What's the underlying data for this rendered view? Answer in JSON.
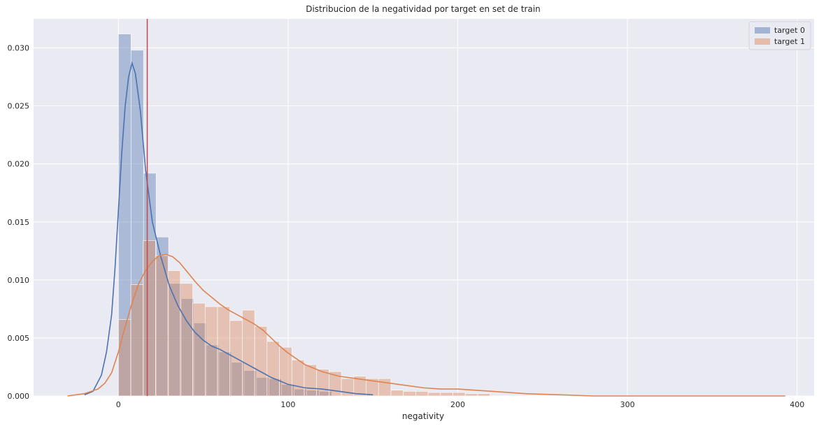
{
  "chart_data": {
    "type": "histogram",
    "title": "Distribucion de la negatividad por target en set de train",
    "xlabel": "negativity",
    "ylabel": "",
    "xlim": [
      -50,
      410
    ],
    "ylim": [
      0,
      0.0325
    ],
    "xticks": [
      0,
      100,
      200,
      300,
      400
    ],
    "yticks": [
      0.0,
      0.005,
      0.01,
      0.015,
      0.02,
      0.025,
      0.03
    ],
    "ytick_labels": [
      "0.000",
      "0.005",
      "0.010",
      "0.015",
      "0.020",
      "0.025",
      "0.030"
    ],
    "grid": true,
    "legend_position": "top-right",
    "vline": {
      "x": 17,
      "color": "#c44e52"
    },
    "series": [
      {
        "name": "target 0",
        "color": "#4c72b0",
        "bin_edges": [
          0,
          7.4,
          14.8,
          22.2,
          29.6,
          37,
          44.4,
          51.8,
          59.2,
          66.6,
          74,
          81.4,
          88.8,
          96.2,
          103.6,
          111,
          118.4,
          125.8
        ],
        "values": [
          0.0312,
          0.0298,
          0.0192,
          0.0137,
          0.0097,
          0.0084,
          0.0063,
          0.0044,
          0.0038,
          0.0029,
          0.0022,
          0.0016,
          0.0015,
          0.001,
          0.0006,
          0.0005,
          0.0004
        ],
        "kde_x": [
          -20,
          -15,
          -10,
          -7,
          -4,
          -2,
          0,
          2,
          4,
          6,
          8,
          10,
          13,
          16,
          20,
          25,
          30,
          35,
          40,
          45,
          50,
          55,
          60,
          70,
          80,
          90,
          100,
          110,
          120,
          130,
          140,
          150
        ],
        "kde_y": [
          0.0001,
          0.0004,
          0.0018,
          0.0038,
          0.007,
          0.011,
          0.016,
          0.021,
          0.025,
          0.0275,
          0.0287,
          0.0278,
          0.0245,
          0.0195,
          0.015,
          0.012,
          0.0095,
          0.0078,
          0.0065,
          0.0055,
          0.0048,
          0.0043,
          0.004,
          0.0032,
          0.0024,
          0.0016,
          0.001,
          0.0007,
          0.0006,
          0.0004,
          0.0002,
          0.0001
        ]
      },
      {
        "name": "target 1",
        "color": "#dd8452",
        "bin_edges": [
          0,
          7.3,
          14.6,
          21.9,
          29.2,
          36.5,
          43.8,
          51.1,
          58.4,
          65.7,
          73,
          80.3,
          87.6,
          94.9,
          102.2,
          109.5,
          116.8,
          124.1,
          131.4,
          138.7,
          146,
          153.3,
          160.6,
          167.9,
          175.2,
          182.5,
          189.8,
          197.1,
          204.4,
          211.7,
          219
        ],
        "values": [
          0.0066,
          0.0096,
          0.0134,
          0.0121,
          0.0108,
          0.0097,
          0.008,
          0.0077,
          0.0077,
          0.0065,
          0.0074,
          0.006,
          0.0047,
          0.0042,
          0.0031,
          0.0027,
          0.0023,
          0.0021,
          0.0015,
          0.0017,
          0.0015,
          0.0015,
          0.0005,
          0.0004,
          0.0004,
          0.0003,
          0.0003,
          0.0003,
          0.0002,
          0.0002
        ],
        "kde_x": [
          -30,
          -20,
          -12,
          -8,
          -4,
          0,
          4,
          8,
          12,
          16,
          20,
          24,
          28,
          32,
          36,
          40,
          45,
          50,
          55,
          60,
          65,
          70,
          75,
          80,
          85,
          90,
          95,
          100,
          110,
          120,
          130,
          140,
          150,
          160,
          170,
          180,
          190,
          200,
          210,
          220,
          240,
          260,
          280,
          300,
          350,
          393
        ],
        "kde_y": [
          0.0,
          0.0002,
          0.0006,
          0.0011,
          0.002,
          0.0038,
          0.006,
          0.008,
          0.0097,
          0.0108,
          0.0116,
          0.0121,
          0.0122,
          0.012,
          0.0115,
          0.0108,
          0.0099,
          0.0091,
          0.0085,
          0.0079,
          0.0074,
          0.007,
          0.0066,
          0.0062,
          0.0057,
          0.005,
          0.0043,
          0.0037,
          0.0027,
          0.0021,
          0.0017,
          0.0015,
          0.0013,
          0.0011,
          0.0009,
          0.0007,
          0.0006,
          0.0006,
          0.0005,
          0.0004,
          0.0002,
          0.0001,
          0.0,
          0.0,
          0.0,
          0.0
        ]
      }
    ]
  }
}
